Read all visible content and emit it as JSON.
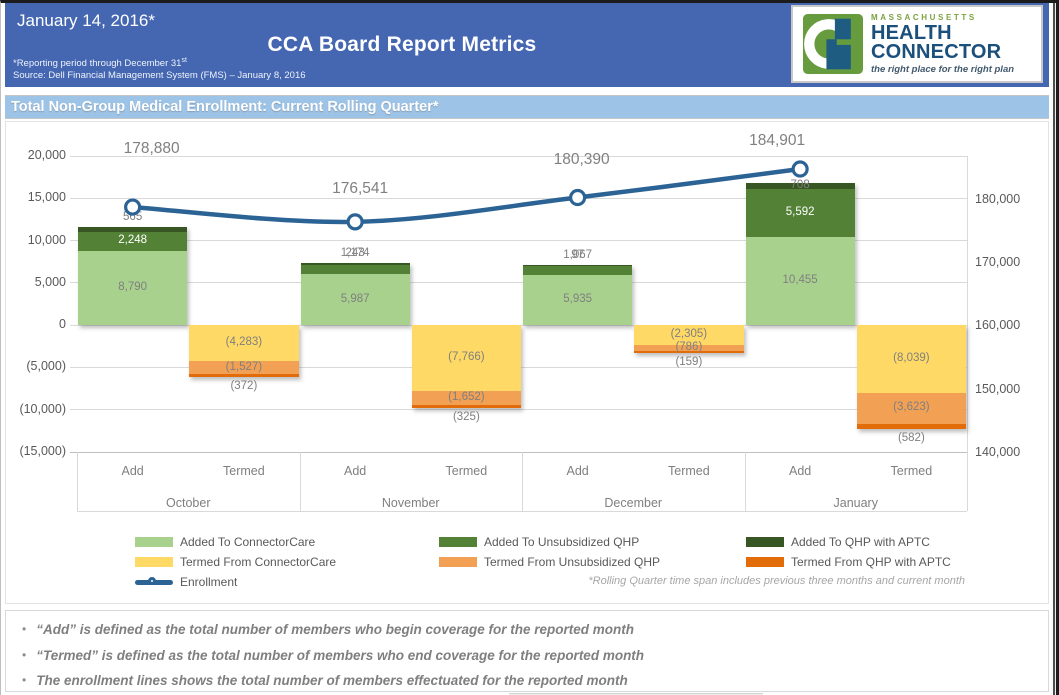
{
  "header": {
    "date": "January 14, 2016*",
    "title": "CCA Board Report Metrics",
    "note1": "*Reporting period through December 31",
    "note1_sup": "st",
    "note2": "Source: Dell Financial Management System (FMS) – January 8, 2016",
    "logo": {
      "region": "MASSACHUSETTS",
      "line1": "HEALTH",
      "line2": "CONNECTOR",
      "tagline": "the right place for the right plan"
    }
  },
  "section": {
    "title": "Total Non-Group Medical Enrollment: Current Rolling Quarter*"
  },
  "chart_data": {
    "type": "bar",
    "subtype": "stacked-bars-with-line",
    "months": [
      "October",
      "November",
      "December",
      "January"
    ],
    "category_row": [
      "Add",
      "Termed"
    ],
    "bar_series": [
      {
        "name": "Added To ConnectorCare",
        "color": "#a9d18e",
        "label_color": "#7f7f7f",
        "group": "add",
        "values": [
          8790,
          5987,
          5935,
          10455
        ]
      },
      {
        "name": "Added To Unsubsidized QHP",
        "color": "#538135",
        "label_color": "#ffffff",
        "group": "add",
        "values": [
          2248,
          1174,
          1067,
          5592
        ]
      },
      {
        "name": "Added To QHP with APTC",
        "color": "#375623",
        "label_color": "#7f7f7f",
        "group": "add",
        "values": [
          565,
          243,
          97,
          708
        ]
      },
      {
        "name": "Termed From ConnectorCare",
        "color": "#ffd966",
        "label_color": "#7f7f7f",
        "group": "termed",
        "values": [
          -4283,
          -7766,
          -2305,
          -8039
        ]
      },
      {
        "name": "Termed From Unsubsidized QHP",
        "color": "#f2a154",
        "label_color": "#7f7f7f",
        "group": "termed",
        "values": [
          -1527,
          -1652,
          -786,
          -3623
        ]
      },
      {
        "name": "Termed From QHP with APTC",
        "color": "#e36c0a",
        "label_color": "#7f7f7f",
        "group": "termed",
        "values": [
          -372,
          -325,
          -159,
          -582
        ]
      }
    ],
    "line_series": {
      "name": "Enrollment",
      "color": "#2c6395",
      "values": [
        178880,
        176541,
        180390,
        184901
      ]
    },
    "left_axis": {
      "min": -15000,
      "max": 20000,
      "step": 5000,
      "ticks": [
        "20,000",
        "15,000",
        "10,000",
        "5,000",
        "0",
        "(5,000)",
        "(10,000)",
        "(15,000)"
      ]
    },
    "right_axis": {
      "min": 140000,
      "max": 180000,
      "step": 10000,
      "ticks": [
        "180,000",
        "170,000",
        "160,000",
        "150,000",
        "140,000"
      ]
    },
    "grid": true,
    "legend_position": "bottom",
    "footnote": "*Rolling Quarter time span includes previous three months and current month"
  },
  "notes": {
    "bullets": [
      "“Add” is defined as the total number of members who begin coverage for the reported month",
      "“Termed” is defined as the total number of members who end coverage for the reported month",
      "The enrollment lines shows the total number of members effectuated for the reported month"
    ]
  },
  "palette": {
    "header_blue": "#4567b1",
    "section_blue": "#9dc3e6",
    "line_blue": "#2c6395",
    "logo_green": "#669b3e",
    "logo_navy": "#1b4f7c"
  }
}
